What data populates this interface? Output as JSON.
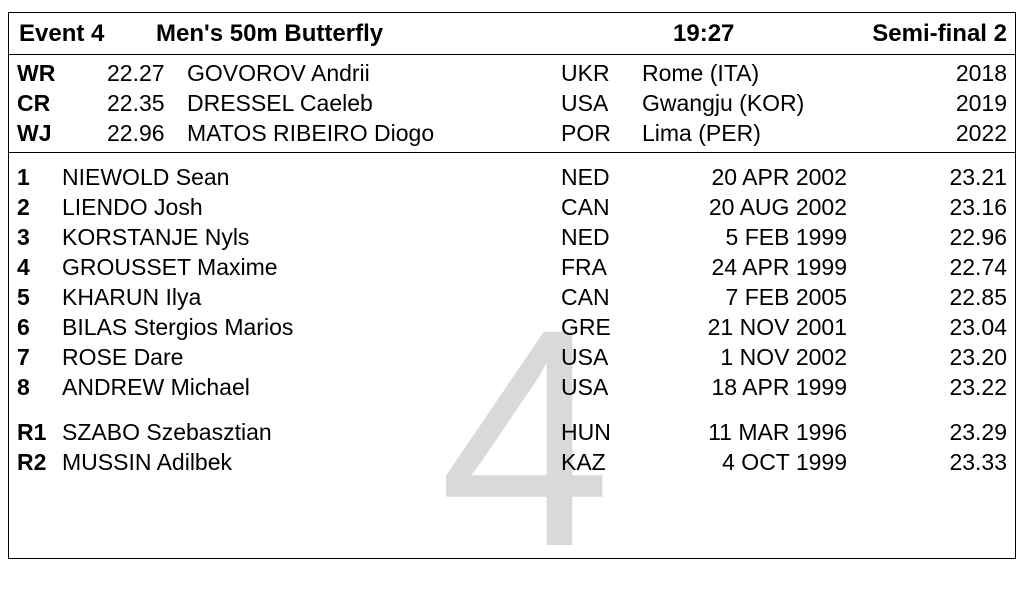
{
  "header": {
    "event": "Event 4",
    "title": "Men's 50m Butterfly",
    "time": "19:27",
    "phase": "Semi-final 2"
  },
  "watermark": "4",
  "records": [
    {
      "code": "WR",
      "time": "22.27",
      "name": "GOVOROV Andrii",
      "nat": "UKR",
      "place": "Rome (ITA)",
      "year": "2018"
    },
    {
      "code": "CR",
      "time": "22.35",
      "name": "DRESSEL Caeleb",
      "nat": "USA",
      "place": "Gwangju (KOR)",
      "year": "2019"
    },
    {
      "code": "WJ",
      "time": "22.96",
      "name": "MATOS RIBEIRO Diogo",
      "nat": "POR",
      "place": "Lima (PER)",
      "year": "2022"
    }
  ],
  "athletes": [
    {
      "lane": "1",
      "name": "NIEWOLD Sean",
      "nat": "NED",
      "dob": "20 APR 2002",
      "time": "23.21"
    },
    {
      "lane": "2",
      "name": "LIENDO Josh",
      "nat": "CAN",
      "dob": "20 AUG 2002",
      "time": "23.16"
    },
    {
      "lane": "3",
      "name": "KORSTANJE Nyls",
      "nat": "NED",
      "dob": "5 FEB 1999",
      "time": "22.96"
    },
    {
      "lane": "4",
      "name": "GROUSSET Maxime",
      "nat": "FRA",
      "dob": "24 APR 1999",
      "time": "22.74"
    },
    {
      "lane": "5",
      "name": "KHARUN Ilya",
      "nat": "CAN",
      "dob": "7 FEB 2005",
      "time": "22.85"
    },
    {
      "lane": "6",
      "name": "BILAS Stergios Marios",
      "nat": "GRE",
      "dob": "21 NOV 2001",
      "time": "23.04"
    },
    {
      "lane": "7",
      "name": "ROSE Dare",
      "nat": "USA",
      "dob": "1 NOV 2002",
      "time": "23.20"
    },
    {
      "lane": "8",
      "name": "ANDREW Michael",
      "nat": "USA",
      "dob": "18 APR 1999",
      "time": "23.22"
    }
  ],
  "reserves": [
    {
      "lane": "R1",
      "name": "SZABO Szebasztian",
      "nat": "HUN",
      "dob": "11 MAR 1996",
      "time": "23.29"
    },
    {
      "lane": "R2",
      "name": "MUSSIN Adilbek",
      "nat": "KAZ",
      "dob": "4 OCT 1999",
      "time": "23.33"
    }
  ]
}
